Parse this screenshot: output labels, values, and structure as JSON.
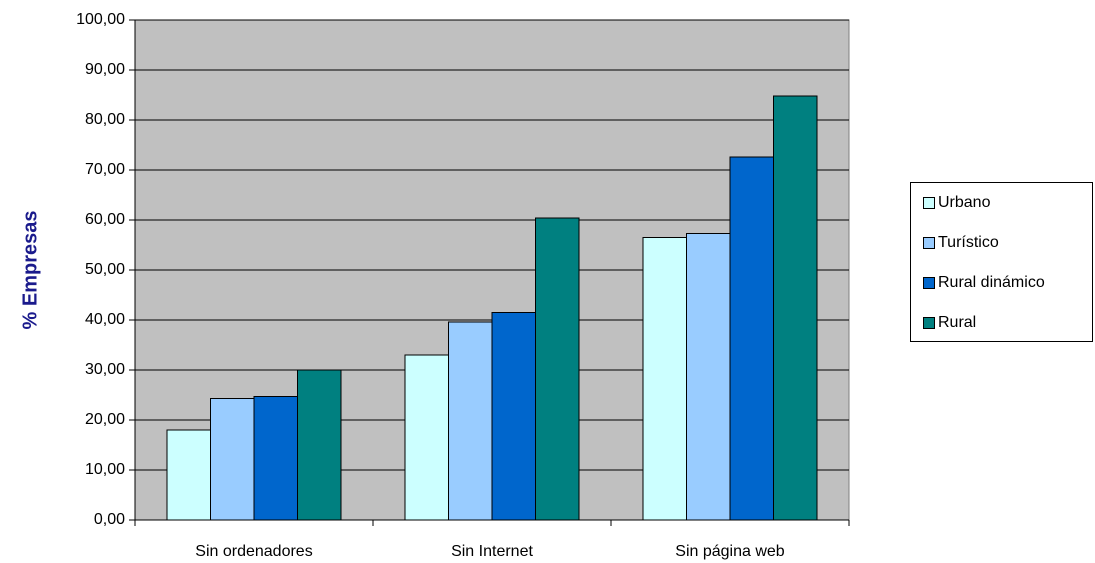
{
  "chart_data": {
    "type": "bar",
    "categories": [
      "Sin ordenadores",
      "Sin Internet",
      "Sin página web"
    ],
    "series": [
      {
        "name": "Urbano",
        "color": "#ccffff",
        "values": [
          18.0,
          33.0,
          56.5
        ]
      },
      {
        "name": "Turístico",
        "color": "#99ccff",
        "values": [
          24.3,
          39.6,
          57.3
        ]
      },
      {
        "name": "Rural dinámico",
        "color": "#0066cc",
        "values": [
          24.7,
          41.5,
          72.6
        ]
      },
      {
        "name": "Rural",
        "color": "#008080",
        "values": [
          30.0,
          60.4,
          84.8
        ]
      }
    ],
    "ylabel": "% Empresas",
    "ylim": [
      0,
      100
    ],
    "yticks": [
      "0,00",
      "10,00",
      "20,00",
      "30,00",
      "40,00",
      "50,00",
      "60,00",
      "70,00",
      "80,00",
      "90,00",
      "100,00"
    ],
    "grid": true,
    "plot_background": "#c0c0c0",
    "legend_position": "right"
  }
}
